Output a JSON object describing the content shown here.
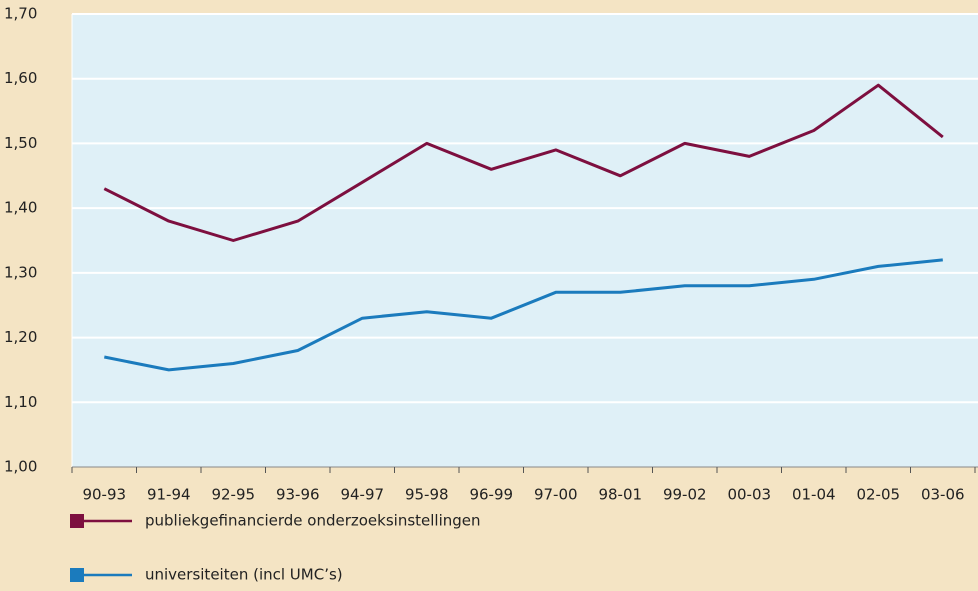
{
  "chart_data": {
    "type": "line",
    "categories": [
      "90-93",
      "91-94",
      "92-95",
      "93-96",
      "94-97",
      "95-98",
      "96-99",
      "97-00",
      "98-01",
      "99-02",
      "00-03",
      "01-04",
      "02-05",
      "03-06"
    ],
    "series": [
      {
        "name": "publiekgefinancierde onderzoeksinstellingen",
        "color": "#7d0f3f",
        "values": [
          1.43,
          1.38,
          1.35,
          1.38,
          1.44,
          1.5,
          1.46,
          1.49,
          1.45,
          1.5,
          1.48,
          1.52,
          1.59,
          1.51
        ]
      },
      {
        "name": "universiteiten (incl UMC’s)",
        "color": "#1b7bbd",
        "values": [
          1.17,
          1.15,
          1.16,
          1.18,
          1.23,
          1.24,
          1.23,
          1.27,
          1.27,
          1.28,
          1.28,
          1.29,
          1.31,
          1.32
        ]
      }
    ],
    "ylim": [
      1.0,
      1.7
    ],
    "yticks": [
      {
        "value": 1.0,
        "label": "1,00"
      },
      {
        "value": 1.1,
        "label": "1,10"
      },
      {
        "value": 1.2,
        "label": "1,20"
      },
      {
        "value": 1.3,
        "label": "1,30"
      },
      {
        "value": 1.4,
        "label": "1,40"
      },
      {
        "value": 1.5,
        "label": "1,50"
      },
      {
        "value": 1.6,
        "label": "1,60"
      },
      {
        "value": 1.7,
        "label": "1,70"
      }
    ],
    "grid": true
  }
}
